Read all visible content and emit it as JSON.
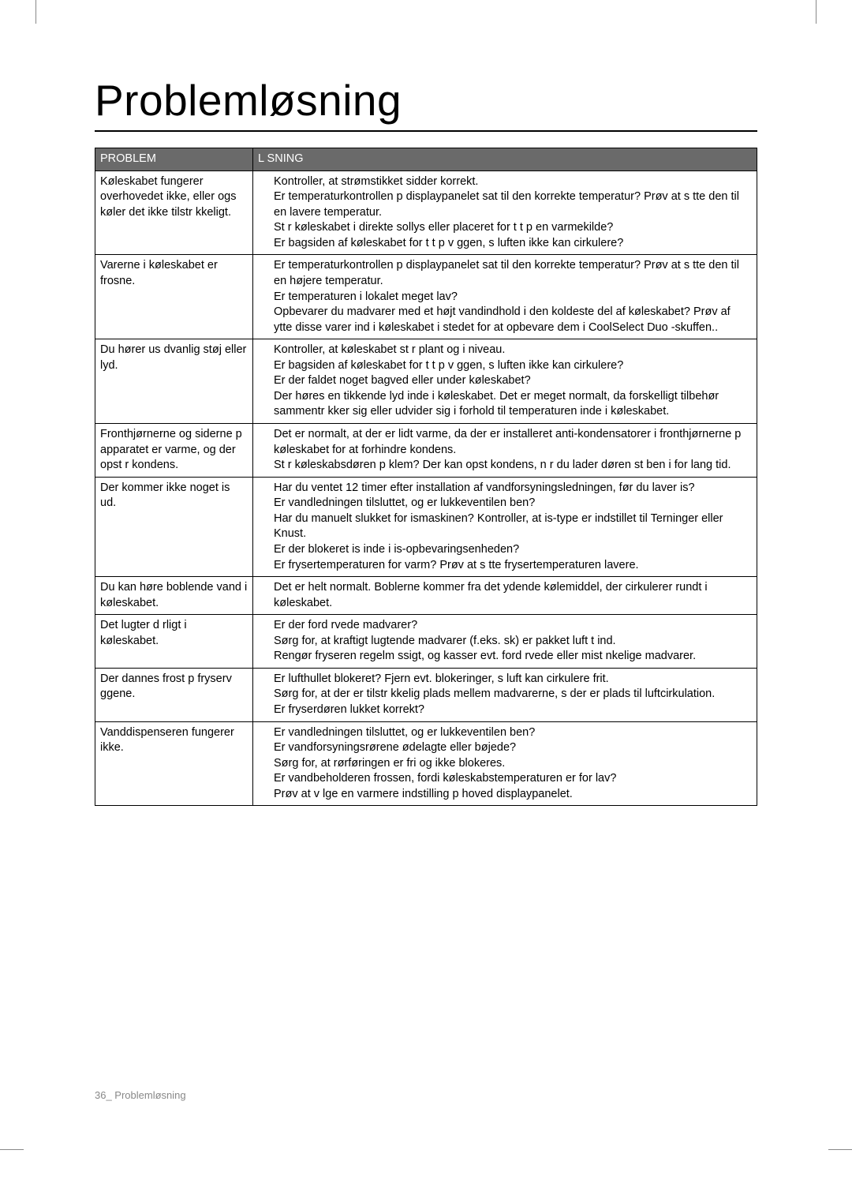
{
  "title": "Problemløsning",
  "table": {
    "header": {
      "problem": "PROBLEM",
      "solution": "L SNING"
    },
    "rows": [
      {
        "problem": "Køleskabet fungerer overhovedet ikke, eller ogs  køler det ikke tilstr kkeligt.",
        "solution": "Kontroller, at strømstikket sidder korrekt.\nEr temperaturkontrollen p  displaypanelet sat til den korrekte temperatur? Prøv at s tte den til en lavere temperatur.\nSt r køleskabet i direkte sollys eller placeret for t t p  en varmekilde?\nEr bagsiden af køleskabet for t t p  v ggen, s  luften ikke kan cirkulere?"
      },
      {
        "problem": "Varerne i køleskabet er frosne.",
        "solution": "Er temperaturkontrollen p  displaypanelet sat til den korrekte temperatur? Prøv at s tte den til en højere temperatur.\nEr temperaturen i lokalet meget lav?\nOpbevarer du madvarer med et højt vandindhold i den koldeste del af køleskabet? Prøv af  ytte disse varer ind i køleskabet i stedet for at opbevare dem i CoolSelect Duo -skuffen.."
      },
      {
        "problem": "Du hører us dvanlig støj eller lyd.",
        "solution": "Kontroller, at køleskabet st r plant og i niveau.\nEr bagsiden af køleskabet for t t p  v ggen, s  luften ikke kan cirkulere?\nEr der faldet noget bagved eller under køleskabet?\nDer høres en  tikkende  lyd inde i køleskabet. Det er meget normalt, da forskelligt tilbehør sammentr kker sig eller udvider sig i forhold til temperaturen inde i køleskabet."
      },
      {
        "problem": "Fronthjørnerne og siderne p  apparatet er varme, og der opst r kondens.",
        "solution": "Det er normalt, at der er lidt varme, da der er installeret anti-kondensatorer i fronthjørnerne p  køleskabet for at forhindre kondens.\nSt r køleskabsdøren p  klem? Der kan opst  kondens, n r du lader døren st   ben i for lang tid."
      },
      {
        "problem": "Der kommer ikke noget is ud.",
        "solution": "Har du ventet 12 timer efter installation af vandforsyningsledningen, før du laver is?\nEr vandledningen tilsluttet, og er lukkeventilen  ben?\nHar du manuelt slukket for ismaskinen? Kontroller, at is-type er indstillet til Terninger eller Knust.\nEr der blokeret is inde i is-opbevaringsenheden?\nEr frysertemperaturen for varm? Prøv at s tte frysertemperaturen lavere."
      },
      {
        "problem": "Du kan høre boblende vand i køleskabet.",
        "solution": "Det er helt normalt. Boblerne kommer fra det  ydende kølemiddel, der cirkulerer rundt i køleskabet."
      },
      {
        "problem": "Det lugter d rligt i køleskabet.",
        "solution": "Er der ford rvede madvarer?\nSørg for, at kraftigt lugtende madvarer (f.eks.  sk) er pakket luft t ind.\nRengør fryseren regelm ssigt, og kasser evt. ford rvede eller mist nkelige madvarer."
      },
      {
        "problem": "Der dannes frost p  fryserv ggene.",
        "solution": "Er lufthullet blokeret? Fjern evt. blokeringer, s  luft kan cirkulere frit.\nSørg for, at der er tilstr kkelig plads mellem madvarerne, s  der er plads til luftcirkulation.\nEr fryserdøren lukket korrekt?"
      },
      {
        "problem": "Vanddispenseren fungerer ikke.",
        "solution": "Er vandledningen tilsluttet, og er lukkeventilen  ben?\nEr vandforsyningsrørene ødelagte eller bøjede?\nSørg for, at rørføringen er fri og ikke blokeres.\nEr vandbeholderen frossen, fordi køleskabstemperaturen er for lav?\nPrøv at v lge en varmere indstilling p  hoved displaypanelet."
      }
    ]
  },
  "footer": "36_ Problemløsning",
  "colors": {
    "header_bg": "#6a6a6a",
    "header_text": "#ffffff",
    "border": "#000000",
    "footer_text": "#888888"
  }
}
